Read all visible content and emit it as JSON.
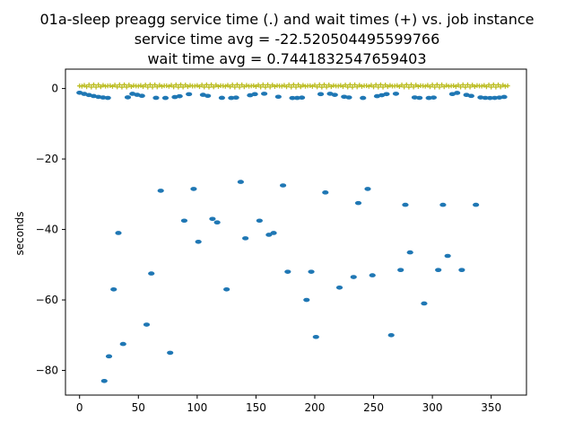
{
  "chart_data": {
    "type": "scatter",
    "title": "01a-sleep preagg service time (.) and wait times (+) vs. job instance",
    "subtitle1": "service time avg = -22.520504495599766",
    "subtitle2": "wait time avg = 0.7441832547659403",
    "xlabel": "",
    "ylabel": "seconds",
    "xlim": [
      -12,
      380
    ],
    "ylim": [
      -87,
      5.5
    ],
    "xticks": [
      0,
      50,
      100,
      150,
      200,
      250,
      300,
      350
    ],
    "yticks": [
      0,
      -20,
      -40,
      -60,
      -80
    ],
    "grid": false,
    "colors": {
      "service": "#1f77b4",
      "wait": "#bcbd22"
    },
    "service_outliers": [
      [
        21,
        -83
      ],
      [
        25,
        -76
      ],
      [
        29,
        -57
      ],
      [
        33,
        -41
      ],
      [
        37,
        -72.5
      ],
      [
        41,
        -2.5
      ],
      [
        45,
        -1.5
      ],
      [
        57,
        -67
      ],
      [
        61,
        -52.5
      ],
      [
        69,
        -29
      ],
      [
        77,
        -75
      ],
      [
        89,
        -37.5
      ],
      [
        97,
        -28.5
      ],
      [
        101,
        -43.5
      ],
      [
        113,
        -37
      ],
      [
        117,
        -38
      ],
      [
        125,
        -57
      ],
      [
        137,
        -26.5
      ],
      [
        141,
        -42.5
      ],
      [
        153,
        -37.5
      ],
      [
        161,
        -41.5
      ],
      [
        165,
        -41
      ],
      [
        173,
        -27.5
      ],
      [
        177,
        -52
      ],
      [
        193,
        -60
      ],
      [
        197,
        -52
      ],
      [
        201,
        -70.5
      ],
      [
        209,
        -29.5
      ],
      [
        221,
        -56.5
      ],
      [
        233,
        -53.5
      ],
      [
        237,
        -32.5
      ],
      [
        245,
        -28.5
      ],
      [
        249,
        -53
      ],
      [
        265,
        -70
      ],
      [
        273,
        -51.5
      ],
      [
        277,
        -33
      ],
      [
        281,
        -46.5
      ],
      [
        293,
        -61
      ],
      [
        305,
        -51.5
      ],
      [
        309,
        -33
      ],
      [
        313,
        -47.5
      ],
      [
        325,
        -51.5
      ],
      [
        337,
        -33
      ]
    ],
    "service_near_zero_x": [
      0,
      4,
      8,
      12,
      16,
      20,
      24,
      49,
      53,
      65,
      73,
      81,
      85,
      93,
      105,
      109,
      121,
      129,
      133,
      145,
      149,
      157,
      169,
      181,
      185,
      189,
      205,
      213,
      217,
      225,
      229,
      241,
      253,
      257,
      261,
      269,
      285,
      289,
      297,
      301,
      317,
      321,
      329,
      333,
      341,
      345,
      349,
      353,
      357,
      361
    ],
    "wait_x_range": [
      0,
      364,
      2
    ],
    "wait_value_approx": 0.74
  }
}
